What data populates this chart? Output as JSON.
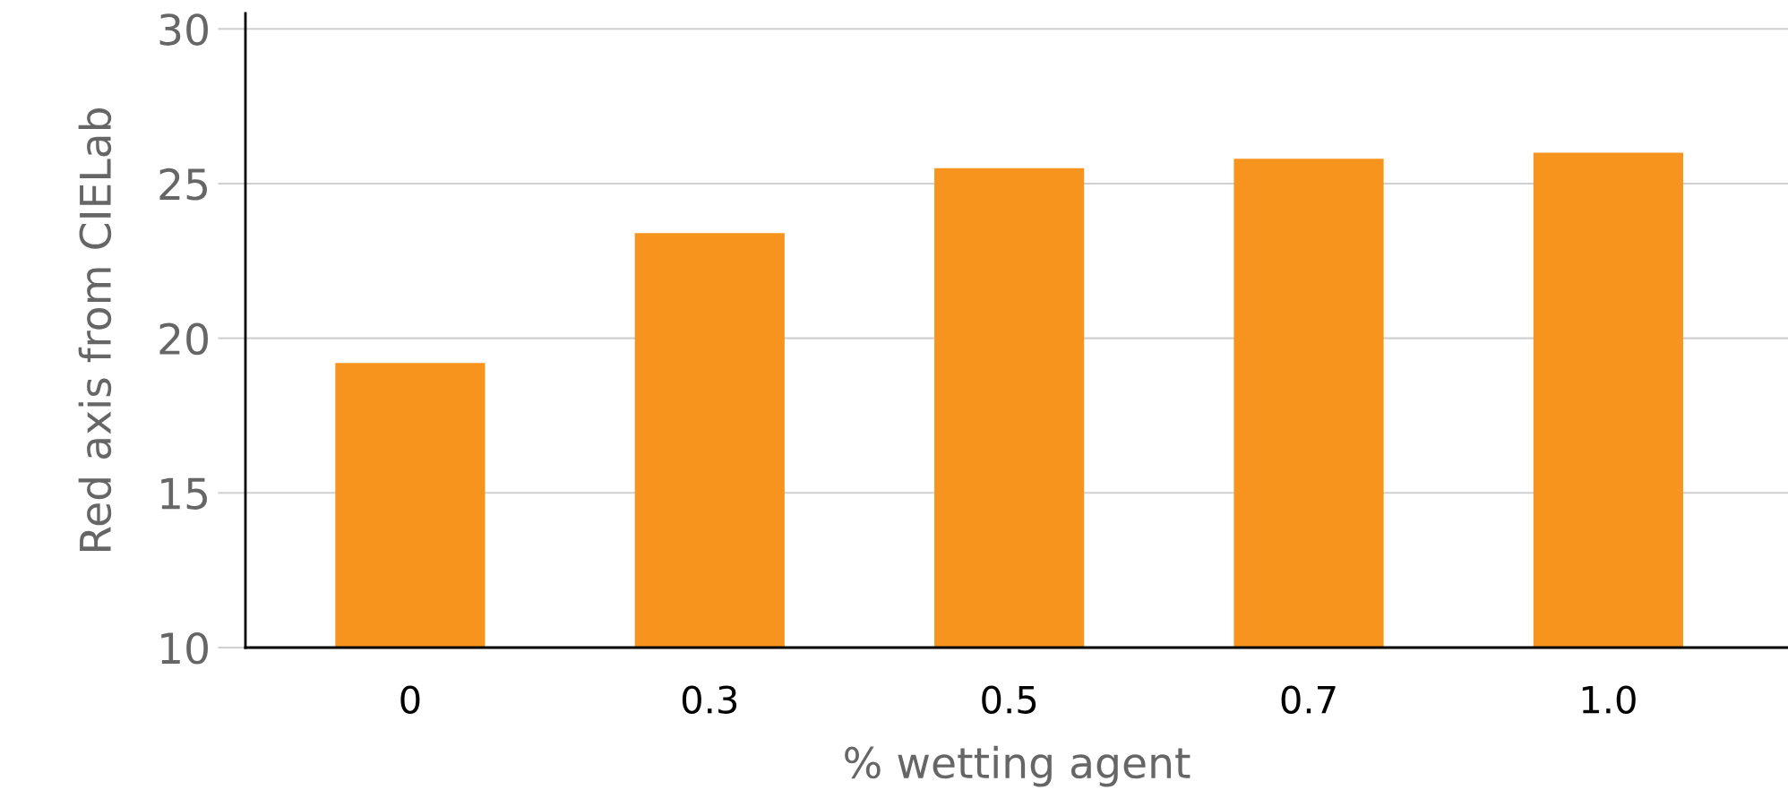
{
  "chart_data": {
    "type": "bar",
    "xlabel": "% wetting agent",
    "ylabel": "Red axis from CIELab",
    "categories": [
      "0",
      "0.3",
      "0.5",
      "0.7",
      "1.0"
    ],
    "values": [
      19.2,
      23.4,
      25.5,
      25.8,
      26.0
    ],
    "color": "#f7941d",
    "ylim": [
      10,
      30.5
    ],
    "yticks": [
      10,
      15,
      20,
      25,
      30
    ],
    "grid": "y"
  }
}
